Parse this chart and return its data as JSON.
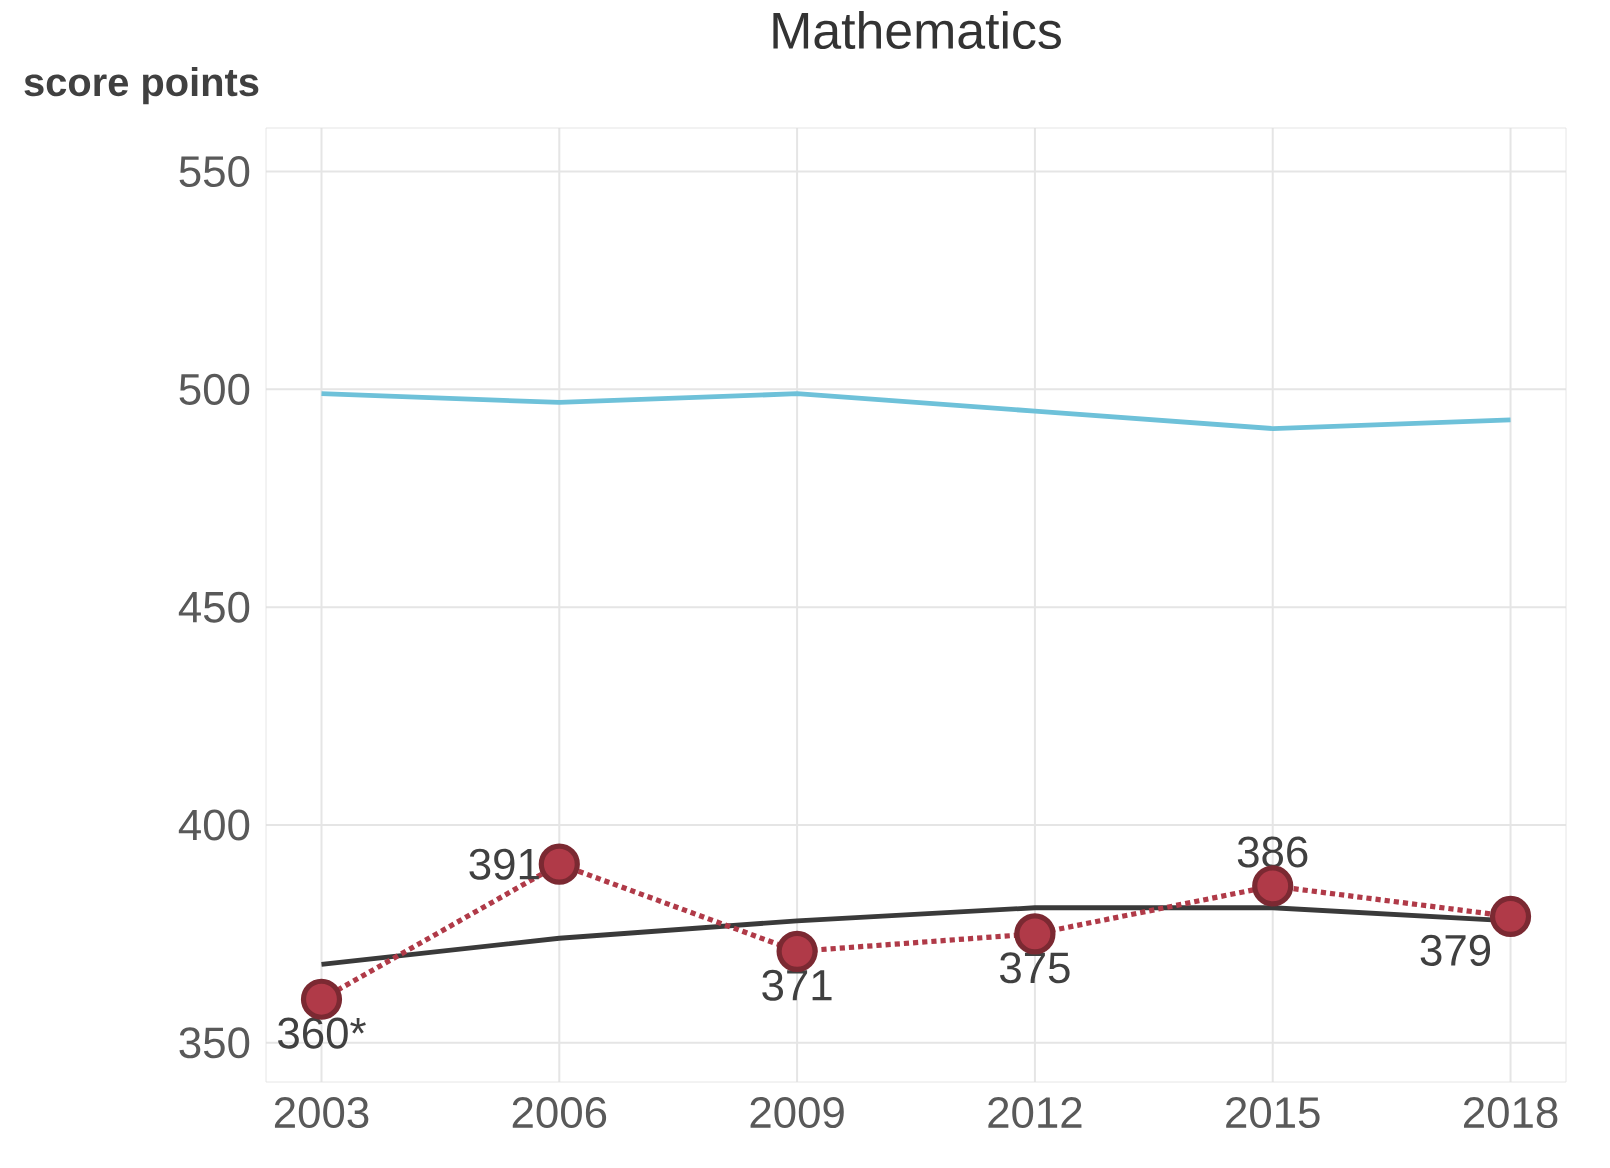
{
  "chart_data": {
    "type": "line",
    "title": "Mathematics",
    "ylabel": "score points",
    "x": [
      2003,
      2006,
      2009,
      2012,
      2015,
      2018
    ],
    "xlim": [
      2002.3,
      2018.7
    ],
    "ylim": [
      341,
      560
    ],
    "xticks": [
      2003,
      2006,
      2009,
      2012,
      2015,
      2018
    ],
    "yticks": [
      350,
      400,
      450,
      500,
      550
    ],
    "grid": true,
    "series": [
      {
        "color": "#6ec1d9",
        "values": [
          499,
          497,
          499,
          495,
          491,
          493
        ]
      },
      {
        "color": "#3a3a3a",
        "values": [
          368,
          374,
          378,
          381,
          381,
          378
        ]
      },
      {
        "color": "#b03a48",
        "line_style": "dotted",
        "marker": "circle",
        "values": [
          360,
          391,
          371,
          375,
          386,
          379
        ],
        "value_labels": [
          "360*",
          "391",
          "371",
          "375",
          "386",
          "379"
        ]
      }
    ]
  }
}
